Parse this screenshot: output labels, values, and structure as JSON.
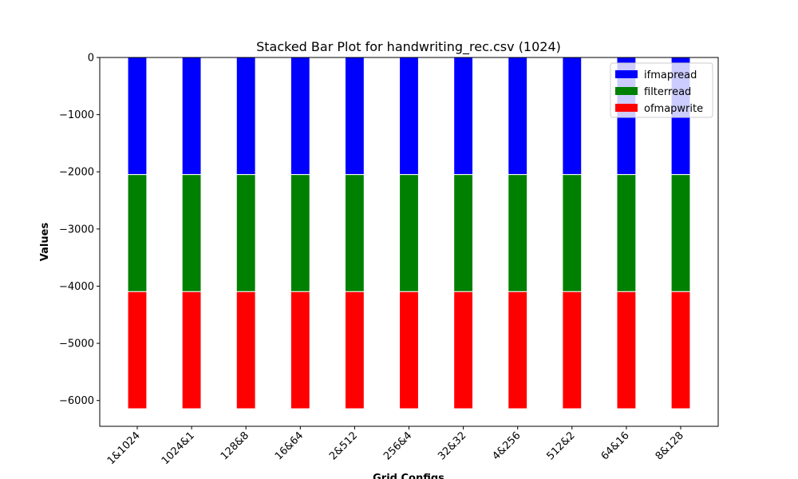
{
  "chart_data": {
    "type": "stacked_bar",
    "title": "Stacked Bar Plot for handwriting_rec.csv (1024)",
    "x_label": "Grid Configs",
    "y_label": "Values",
    "categories": [
      "1&1024",
      "1024&1",
      "128&8",
      "16&64",
      "2&512",
      "256&4",
      "32&32",
      "4&256",
      "512&2",
      "64&16",
      "8&128"
    ],
    "series": [
      {
        "name": "ifmapread",
        "color": "#0000ff",
        "values": [
          -2048,
          -2048,
          -2048,
          -2048,
          -2048,
          -2048,
          -2048,
          -2048,
          -2048,
          -2048,
          -2048
        ]
      },
      {
        "name": "filterread",
        "color": "#008000",
        "values": [
          -2048,
          -2048,
          -2048,
          -2048,
          -2048,
          -2048,
          -2048,
          -2048,
          -2048,
          -2048,
          -2048
        ]
      },
      {
        "name": "ofmapwrite",
        "color": "#ff0000",
        "values": [
          -2048,
          -2048,
          -2048,
          -2048,
          -2048,
          -2048,
          -2048,
          -2048,
          -2048,
          -2048,
          -2048
        ]
      }
    ],
    "ylim": [
      -6451.2,
      0
    ],
    "yticks": [
      {
        "value": 0,
        "label": "0"
      },
      {
        "value": -1000,
        "label": "−1000"
      },
      {
        "value": -2000,
        "label": "−2000"
      },
      {
        "value": -3000,
        "label": "−3000"
      },
      {
        "value": -4000,
        "label": "−4000"
      },
      {
        "value": -5000,
        "label": "−5000"
      },
      {
        "value": -6000,
        "label": "−6000"
      }
    ],
    "legend": "upper right"
  }
}
